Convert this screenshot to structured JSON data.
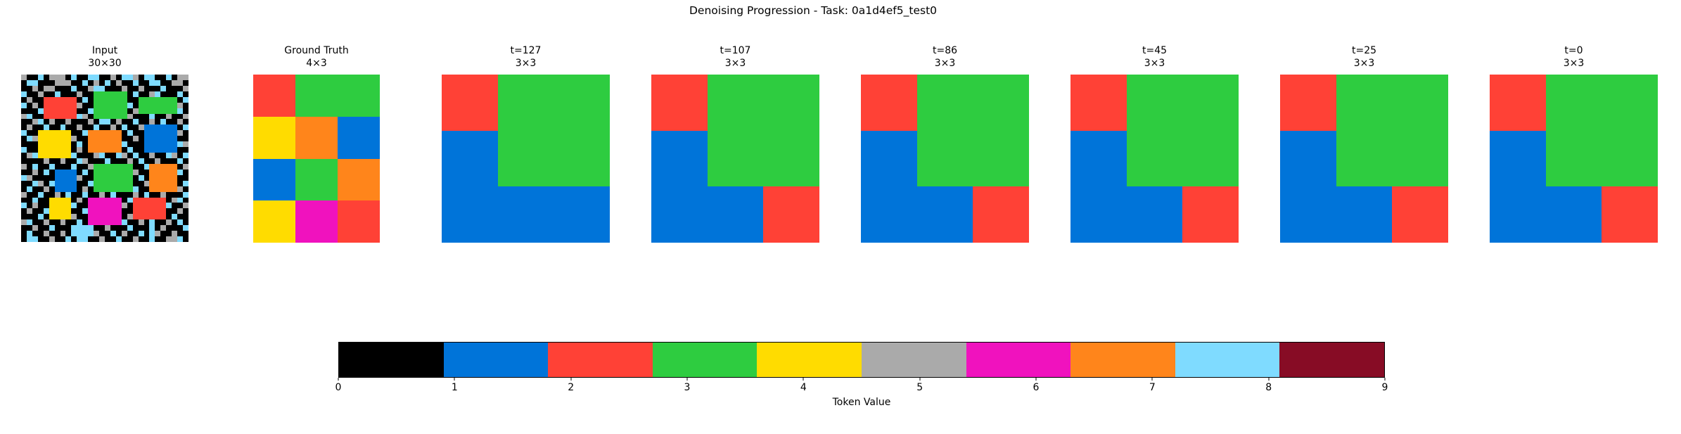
{
  "chart_data": {
    "type": "heatmap",
    "title": "Denoising Progression - Task: 0a1d4ef5_test0",
    "token_colors": {
      "0": "#000000",
      "1": "#0074D9",
      "2": "#FF4136",
      "3": "#2ECC40",
      "4": "#FFDC00",
      "5": "#AAAAAA",
      "6": "#F012BE",
      "7": "#FF851B",
      "8": "#7FDBFF",
      "9": "#870C25"
    },
    "panels": [
      {
        "label": "Input",
        "sublabel": "30×30",
        "rows": 30,
        "cols": 30,
        "grid": [
          "500805550800880050885088008055",
          "088000555008050805008008800550",
          "005055000800588000500500080005",
          "800500800050033333308005800080",
          "050022222208033333300333333308",
          "805022222250033333380333333350",
          "000822222200833333305333333380",
          "580022222285033333350008005005",
          "005805005000508805008005080050",
          "050080080050080050800511111108",
          "800444444008777777080011111150",
          "085444444500777777005011111100",
          "000444444080777777800011111185",
          "800444444050777777080011111100",
          "058444444800058008508005008508",
          "000050050085000800050800500080",
          "508008000800533333330087777705",
          "005080111108033333335007777780",
          "850000111150033333330807777700",
          "008508111100833333330057777708",
          "080050111105033333338007777750",
          "500800508008005080005080050008",
          "008004444050666666082222220580",
          "805004444800666666502222228005",
          "050084444008666666002222220050",
          "000804444500666666052222220800",
          "580050050080666666800508005080",
          "005008000888800500080008050008",
          "080050050888850080500808500500",
          "088005008088005008005008005580"
        ]
      },
      {
        "label": "Ground Truth",
        "sublabel": "4×3",
        "rows": 4,
        "cols": 3,
        "grid": [
          "233",
          "471",
          "137",
          "462"
        ]
      },
      {
        "label": "t=127",
        "sublabel": "3×3",
        "rows": 3,
        "cols": 3,
        "grid": [
          "233",
          "133",
          "111"
        ]
      },
      {
        "label": "t=107",
        "sublabel": "3×3",
        "rows": 3,
        "cols": 3,
        "grid": [
          "233",
          "133",
          "112"
        ]
      },
      {
        "label": "t=86",
        "sublabel": "3×3",
        "rows": 3,
        "cols": 3,
        "grid": [
          "233",
          "133",
          "112"
        ]
      },
      {
        "label": "t=45",
        "sublabel": "3×3",
        "rows": 3,
        "cols": 3,
        "grid": [
          "233",
          "133",
          "112"
        ]
      },
      {
        "label": "t=25",
        "sublabel": "3×3",
        "rows": 3,
        "cols": 3,
        "grid": [
          "233",
          "133",
          "112"
        ]
      },
      {
        "label": "t=0",
        "sublabel": "3×3",
        "rows": 3,
        "cols": 3,
        "grid": [
          "233",
          "133",
          "112"
        ]
      }
    ],
    "colorbar": {
      "label": "Token Value",
      "range": [
        0,
        9
      ],
      "n_colors": 10,
      "tick_labels": [
        "0",
        "1",
        "2",
        "3",
        "4",
        "5",
        "6",
        "7",
        "8",
        "9"
      ],
      "colors": [
        "#000000",
        "#0074D9",
        "#FF4136",
        "#2ECC40",
        "#FFDC00",
        "#AAAAAA",
        "#F012BE",
        "#FF851B",
        "#7FDBFF",
        "#870C25"
      ]
    }
  }
}
